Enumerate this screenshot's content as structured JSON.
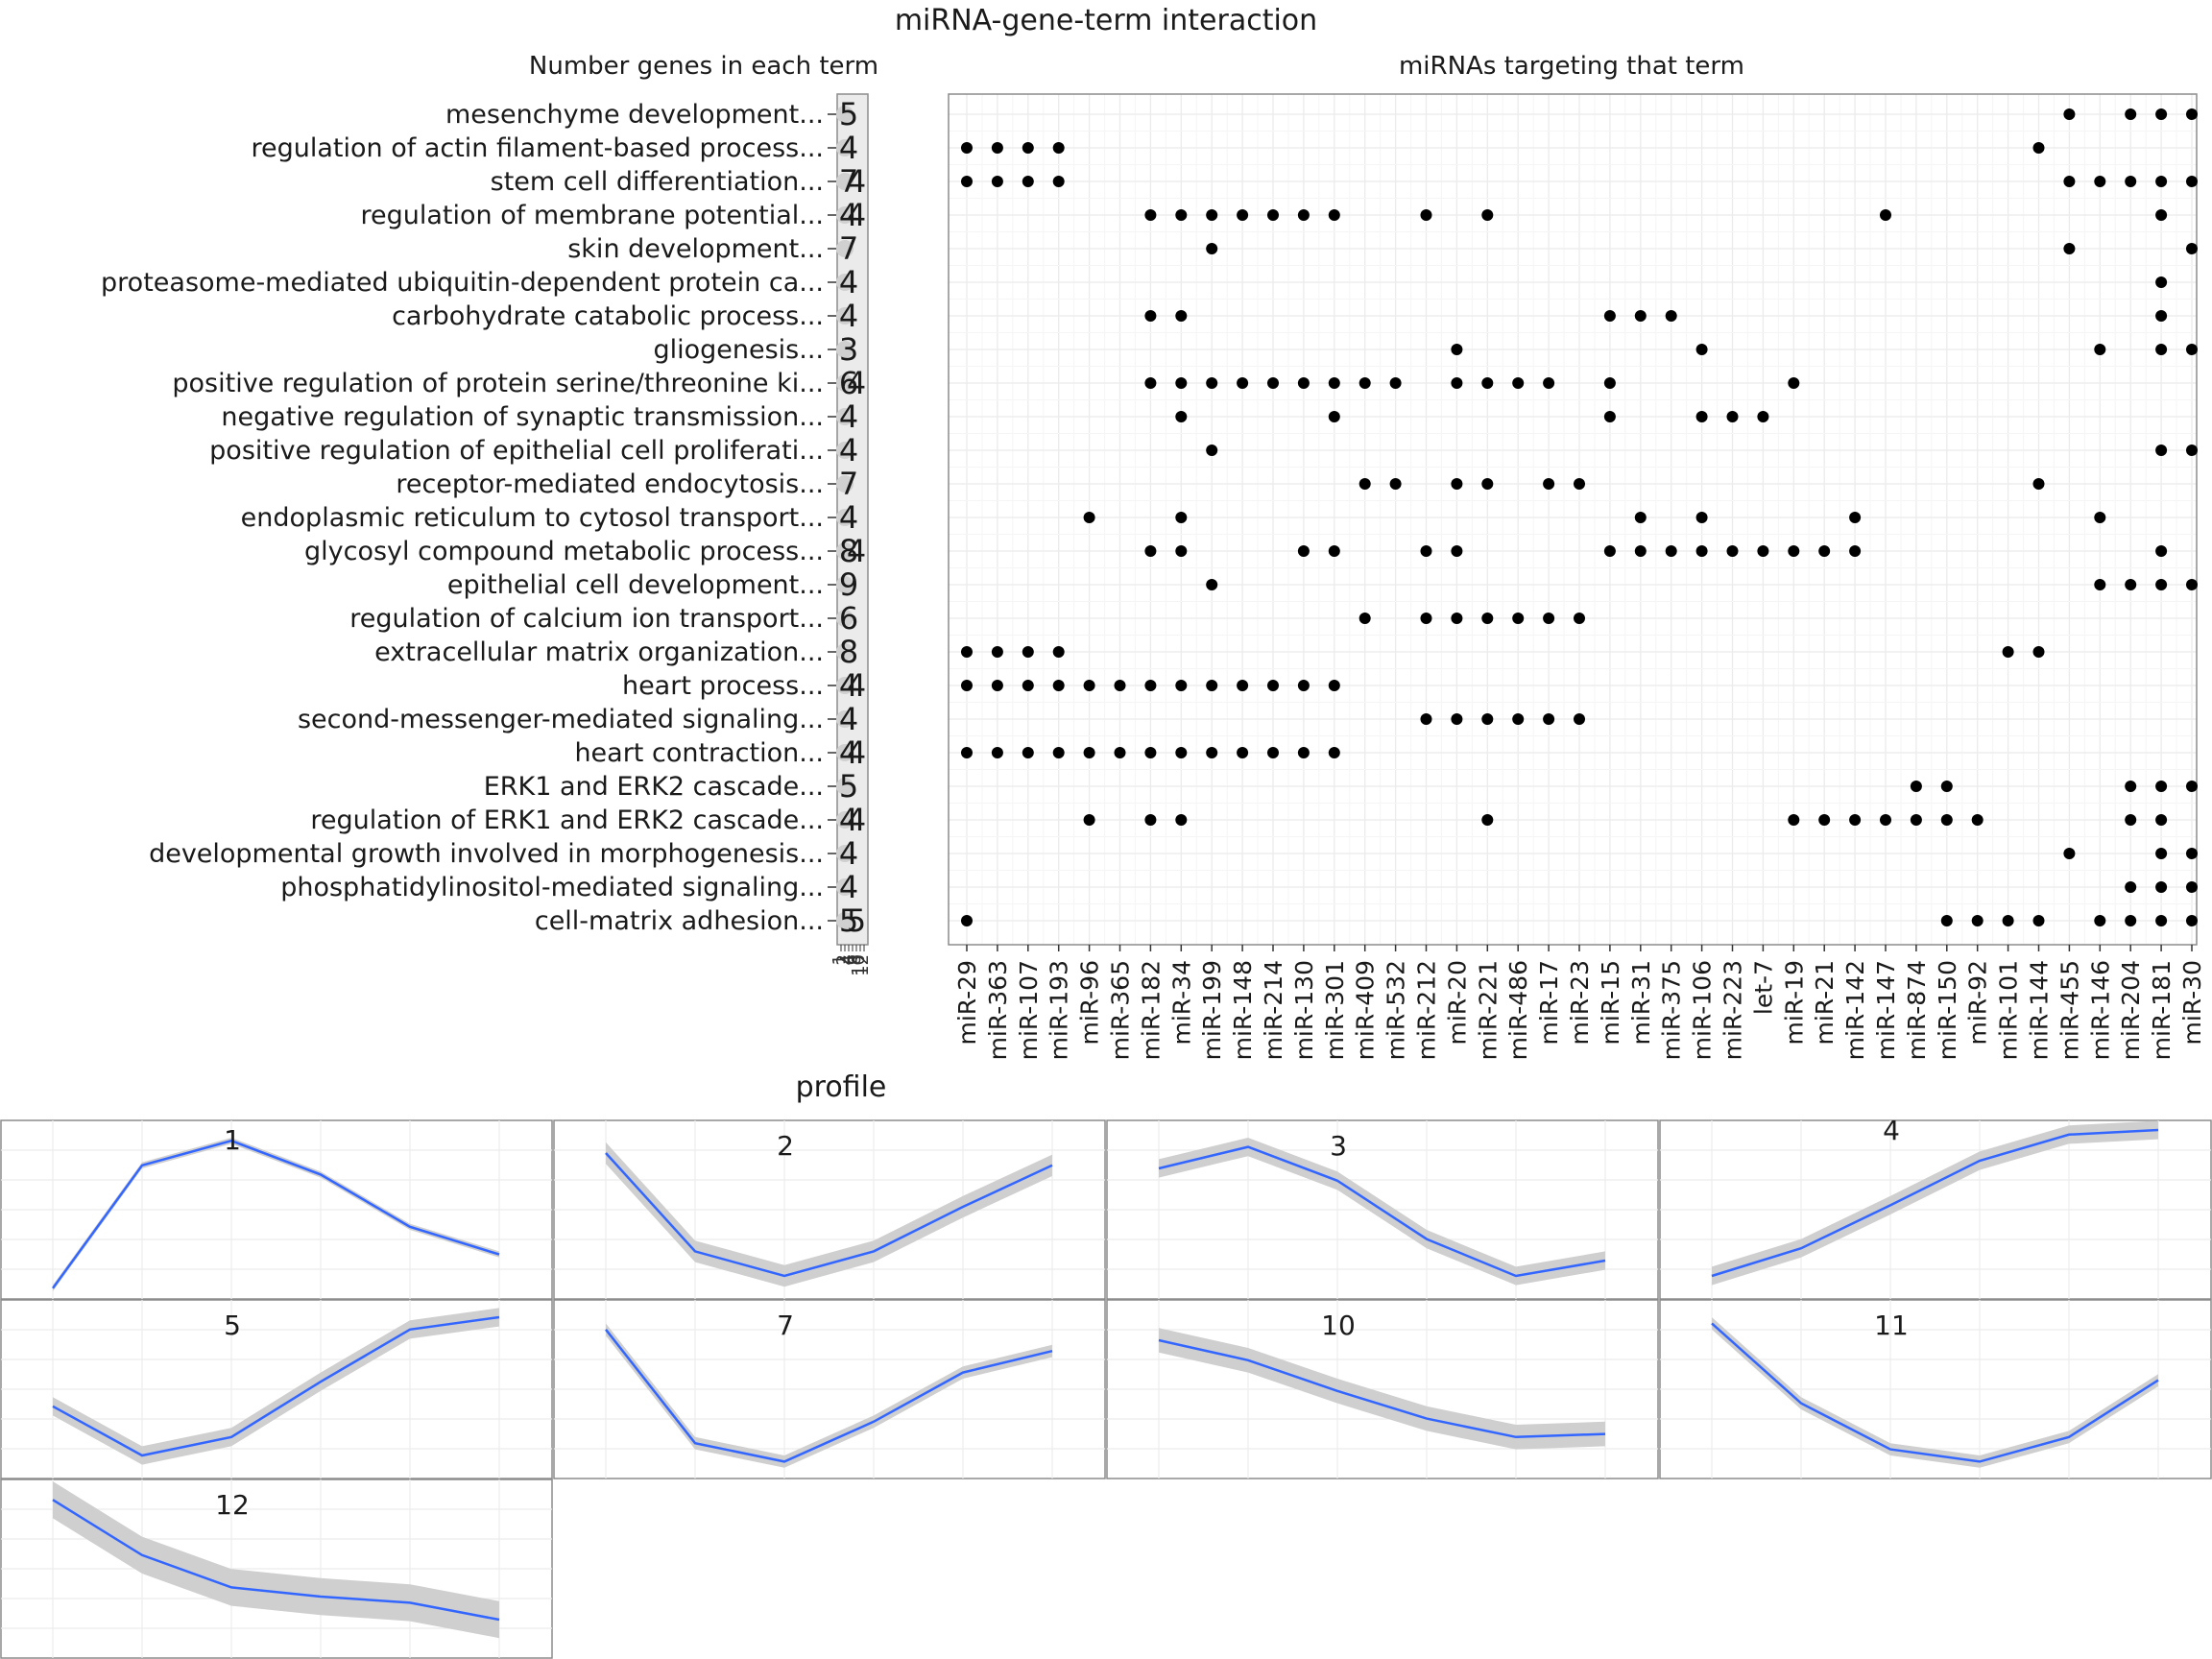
{
  "title": "miRNA-gene-term interaction",
  "panel_left_title": "Number genes in each term",
  "panel_right_title": "miRNAs targeting that term",
  "profiles_title": "profile",
  "chart_data": [
    {
      "type": "scatter",
      "name": "term-gene-counts",
      "categories": [
        "mesenchyme development...",
        "regulation of actin filament-based process...",
        "stem cell differentiation...",
        "regulation of membrane potential...",
        "skin development...",
        "proteasome-mediated ubiquitin-dependent protein ca...",
        "carbohydrate catabolic process...",
        "gliogenesis...",
        "positive regulation of protein serine/threonine ki...",
        "negative regulation of synaptic transmission...",
        "positive regulation of epithelial cell proliferati...",
        "receptor-mediated endocytosis...",
        "endoplasmic reticulum to cytosol transport...",
        "glycosyl compound metabolic process...",
        "epithelial cell development...",
        "regulation of calcium ion transport...",
        "extracellular matrix organization...",
        "heart process...",
        "second-messenger-mediated signaling...",
        "heart contraction...",
        "ERK1 and ERK2 cascade...",
        "regulation of ERK1 and ERK2 cascade...",
        "developmental growth involved in morphogenesis...",
        "phosphatidylinositol-mediated signaling...",
        "cell-matrix adhesion..."
      ],
      "labels": [
        [
          "5"
        ],
        [
          "4"
        ],
        [
          "7",
          "4"
        ],
        [
          "4",
          "4"
        ],
        [
          "7"
        ],
        [
          "4"
        ],
        [
          "4"
        ],
        [
          "3"
        ],
        [
          "6",
          "4"
        ],
        [
          "4"
        ],
        [
          "4"
        ],
        [
          "7"
        ],
        [
          "4"
        ],
        [
          "8",
          "4"
        ],
        [
          "9"
        ],
        [
          "6"
        ],
        [
          "8"
        ],
        [
          "4",
          "4"
        ],
        [
          "4"
        ],
        [
          "4",
          "4"
        ],
        [
          "5"
        ],
        [
          "4",
          "4"
        ],
        [
          "4"
        ],
        [
          "4"
        ],
        [
          "5",
          "5"
        ]
      ],
      "x_tick_labels": [
        "1",
        "2",
        "4",
        "6",
        "8",
        "10",
        "12"
      ]
    },
    {
      "type": "scatter",
      "name": "mirna-term-matrix",
      "x": [
        "miR-29",
        "miR-363",
        "miR-107",
        "miR-193",
        "miR-96",
        "miR-365",
        "miR-182",
        "miR-34",
        "miR-199",
        "miR-148",
        "miR-214",
        "miR-130",
        "miR-301",
        "miR-409",
        "miR-532",
        "miR-212",
        "miR-20",
        "miR-221",
        "miR-486",
        "miR-17",
        "miR-23",
        "miR-15",
        "miR-31",
        "miR-375",
        "miR-106",
        "miR-223",
        "let-7",
        "miR-19",
        "miR-21",
        "miR-142",
        "miR-147",
        "miR-874",
        "miR-150",
        "miR-92",
        "miR-101",
        "miR-144",
        "miR-455",
        "miR-146",
        "miR-204",
        "miR-181",
        "miR-30"
      ],
      "points": [
        {
          "term": 0,
          "mirnas": [
            36,
            38,
            39,
            40
          ]
        },
        {
          "term": 1,
          "mirnas": [
            0,
            1,
            2,
            3,
            35
          ]
        },
        {
          "term": 2,
          "mirnas": [
            0,
            1,
            2,
            3,
            36,
            37,
            38,
            39,
            40
          ]
        },
        {
          "term": 3,
          "mirnas": [
            6,
            7,
            8,
            9,
            10,
            11,
            12,
            15,
            17,
            30,
            39
          ]
        },
        {
          "term": 4,
          "mirnas": [
            8,
            36,
            40
          ]
        },
        {
          "term": 5,
          "mirnas": [
            39
          ]
        },
        {
          "term": 6,
          "mirnas": [
            6,
            7,
            21,
            22,
            23,
            39
          ]
        },
        {
          "term": 7,
          "mirnas": [
            16,
            24,
            37,
            39,
            40
          ]
        },
        {
          "term": 8,
          "mirnas": [
            6,
            7,
            8,
            9,
            10,
            11,
            12,
            13,
            14,
            16,
            17,
            18,
            19,
            21,
            27
          ]
        },
        {
          "term": 9,
          "mirnas": [
            7,
            12,
            21,
            24,
            25,
            26
          ]
        },
        {
          "term": 10,
          "mirnas": [
            8,
            39,
            40
          ]
        },
        {
          "term": 11,
          "mirnas": [
            13,
            14,
            16,
            17,
            19,
            20,
            35
          ]
        },
        {
          "term": 12,
          "mirnas": [
            4,
            7,
            22,
            24,
            29,
            37
          ]
        },
        {
          "term": 13,
          "mirnas": [
            6,
            7,
            11,
            12,
            15,
            16,
            21,
            22,
            23,
            24,
            25,
            26,
            27,
            28,
            29,
            39
          ]
        },
        {
          "term": 14,
          "mirnas": [
            8,
            37,
            38,
            39,
            40
          ]
        },
        {
          "term": 15,
          "mirnas": [
            13,
            15,
            16,
            17,
            18,
            19,
            20
          ]
        },
        {
          "term": 16,
          "mirnas": [
            0,
            1,
            2,
            3,
            34,
            35
          ]
        },
        {
          "term": 17,
          "mirnas": [
            0,
            1,
            2,
            3,
            4,
            5,
            6,
            7,
            8,
            9,
            10,
            11,
            12
          ]
        },
        {
          "term": 18,
          "mirnas": [
            15,
            16,
            17,
            18,
            19,
            20
          ]
        },
        {
          "term": 19,
          "mirnas": [
            0,
            1,
            2,
            3,
            4,
            5,
            6,
            7,
            8,
            9,
            10,
            11,
            12
          ]
        },
        {
          "term": 20,
          "mirnas": [
            31,
            32,
            38,
            39,
            40
          ]
        },
        {
          "term": 21,
          "mirnas": [
            4,
            6,
            7,
            17,
            27,
            28,
            29,
            30,
            31,
            32,
            33,
            38,
            39
          ]
        },
        {
          "term": 22,
          "mirnas": [
            36,
            39,
            40
          ]
        },
        {
          "term": 23,
          "mirnas": [
            38,
            39,
            40
          ]
        },
        {
          "term": 24,
          "mirnas": [
            0,
            32,
            33,
            34,
            35,
            37,
            38,
            39,
            40
          ]
        }
      ]
    },
    {
      "type": "line",
      "name": "expression-profiles",
      "x": [
        1,
        2,
        3,
        4,
        5,
        6
      ],
      "series": [
        {
          "name": "1",
          "values": [
            0.02,
            0.82,
            0.98,
            0.76,
            0.42,
            0.24
          ],
          "band": 0.02
        },
        {
          "name": "2",
          "values": [
            0.9,
            0.26,
            0.1,
            0.26,
            0.55,
            0.82
          ],
          "band": 0.07
        },
        {
          "name": "3",
          "values": [
            0.8,
            0.94,
            0.72,
            0.34,
            0.1,
            0.2
          ],
          "band": 0.06
        },
        {
          "name": "4",
          "values": [
            0.1,
            0.28,
            0.56,
            0.85,
            1.02,
            1.05
          ],
          "band": 0.06
        },
        {
          "name": "5",
          "values": [
            0.42,
            0.1,
            0.22,
            0.58,
            0.92,
            1.0
          ],
          "band": 0.06
        },
        {
          "name": "7",
          "values": [
            0.92,
            0.18,
            0.06,
            0.32,
            0.64,
            0.78
          ],
          "band": 0.04
        },
        {
          "name": "10",
          "values": [
            0.85,
            0.72,
            0.52,
            0.34,
            0.22,
            0.24
          ],
          "band": 0.08
        },
        {
          "name": "11",
          "values": [
            0.96,
            0.44,
            0.14,
            0.06,
            0.22,
            0.59
          ],
          "band": 0.04
        },
        {
          "name": "12",
          "values": [
            0.98,
            0.62,
            0.41,
            0.35,
            0.31,
            0.2
          ],
          "band": 0.12
        }
      ]
    }
  ]
}
